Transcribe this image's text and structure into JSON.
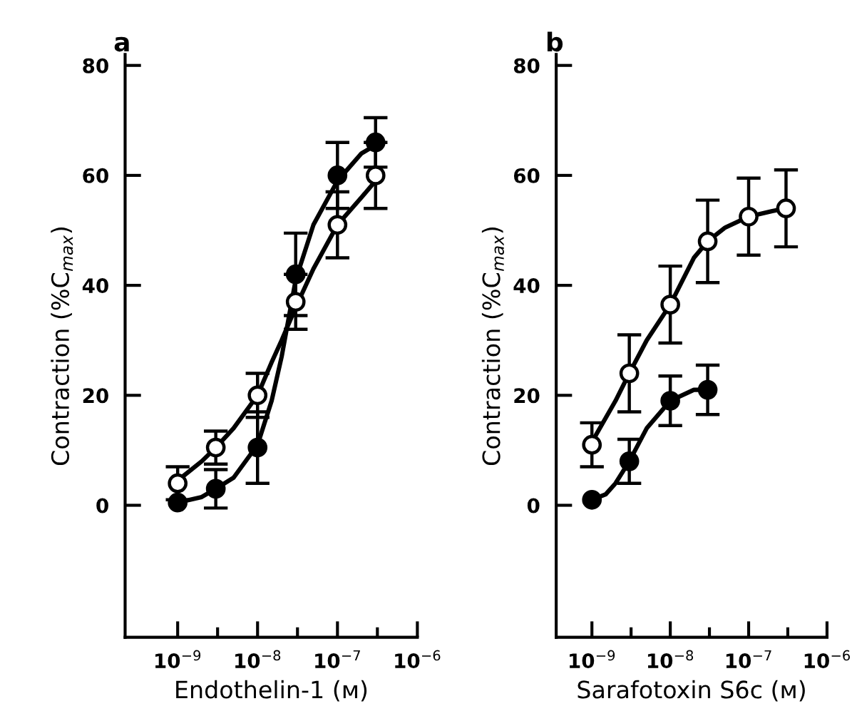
{
  "chart_data": [
    {
      "type": "scatter",
      "title": "a",
      "xlabel": "Endothelin-1 (ᴍ)",
      "ylabel": "Contraction (%C$_{max}$)",
      "log": "x",
      "xlim": [
        2.2e-10,
        1e-06
      ],
      "ylim": [
        -24,
        82
      ],
      "xticks": [
        {
          "value": 1e-09,
          "label": "10$^{−9}$"
        },
        {
          "value": 3.16e-09,
          "label": null
        },
        {
          "value": 1e-08,
          "label": "10$^{−8}$"
        },
        {
          "value": 3.16e-08,
          "label": null
        },
        {
          "value": 1e-07,
          "label": "10$^{−7}$"
        },
        {
          "value": 3.16e-07,
          "label": null
        },
        {
          "value": 1e-06,
          "label": "10$^{−6}$"
        }
      ],
      "yticks": [
        0,
        20,
        40,
        60,
        80
      ],
      "grid": false,
      "marker": "circle",
      "series": [
        {
          "type": "line",
          "color": "#000000",
          "marker": "none",
          "x": [
            1e-09,
            2e-09,
            3e-09,
            5e-09,
            1e-08,
            1.5e-08,
            2e-08,
            3e-08,
            5e-08,
            1e-07,
            2e-07,
            3e-07
          ],
          "values": [
            4.5,
            8,
            10.5,
            14,
            20,
            26,
            30,
            36,
            43,
            51,
            56,
            59
          ]
        },
        {
          "type": "line",
          "color": "#000000",
          "marker": "none",
          "x": [
            1e-09,
            2e-09,
            3e-09,
            5e-09,
            1e-08,
            1.5e-08,
            2e-08,
            3e-08,
            5e-08,
            1e-07,
            2e-07,
            3e-07
          ],
          "values": [
            0.5,
            1.5,
            3,
            5,
            11,
            19,
            27,
            41,
            51,
            59,
            64,
            65.5
          ]
        },
        {
          "color": "#ffffff",
          "x": [
            1e-09,
            3e-09,
            1e-08,
            3e-08,
            1e-07,
            3e-07
          ],
          "values": [
            4,
            10.5,
            20,
            37,
            51,
            60
          ],
          "errors": [
            3,
            3,
            4,
            5,
            6,
            6
          ]
        },
        {
          "color": "#000000",
          "x": [
            1e-09,
            3e-09,
            1e-08,
            3e-08,
            1e-07,
            3e-07
          ],
          "values": [
            0.5,
            3,
            10.5,
            42,
            60,
            66
          ],
          "errors": [
            null,
            3.5,
            6.5,
            7.5,
            6,
            4.5
          ]
        }
      ]
    },
    {
      "type": "scatter",
      "title": "b",
      "xlabel": "Sarafotoxin S6c (ᴍ)",
      "ylabel": "Contraction (%C$_{max}$)",
      "log": "x",
      "xlim": [
        3.5e-10,
        1e-06
      ],
      "ylim": [
        -24,
        82
      ],
      "xticks": [
        {
          "value": 1e-09,
          "label": "10$^{−9}$"
        },
        {
          "value": 3.16e-09,
          "label": null
        },
        {
          "value": 1e-08,
          "label": "10$^{−8}$"
        },
        {
          "value": 3.16e-08,
          "label": null
        },
        {
          "value": 1e-07,
          "label": "10$^{−7}$"
        },
        {
          "value": 3.16e-07,
          "label": null
        },
        {
          "value": 1e-06,
          "label": "10$^{−6}$"
        }
      ],
      "yticks": [
        0,
        20,
        40,
        60,
        80
      ],
      "grid": false,
      "marker": "circle",
      "series": [
        {
          "type": "line",
          "color": "#000000",
          "marker": "none",
          "x": [
            1e-09,
            2e-09,
            3e-09,
            5e-09,
            1e-08,
            2e-08,
            3e-08,
            5e-08,
            1e-07,
            2e-07,
            3e-07
          ],
          "values": [
            11.5,
            19,
            24,
            30,
            36.5,
            45,
            48,
            50.5,
            52.5,
            53.5,
            54
          ]
        },
        {
          "type": "line",
          "color": "#000000",
          "marker": "none",
          "x": [
            1e-09,
            1.5e-09,
            2e-09,
            3e-09,
            5e-09,
            1e-08,
            2e-08,
            3e-08
          ],
          "values": [
            1,
            2,
            4,
            8,
            14,
            19,
            21,
            21
          ]
        },
        {
          "color": "#ffffff",
          "x": [
            1e-09,
            3e-09,
            1e-08,
            3e-08,
            1e-07,
            3e-07
          ],
          "values": [
            11,
            24,
            36.5,
            48,
            52.5,
            54
          ],
          "errors": [
            4,
            7,
            7,
            7.5,
            7,
            7
          ]
        },
        {
          "color": "#000000",
          "x": [
            1e-09,
            3e-09,
            1e-08,
            3e-08
          ],
          "values": [
            1,
            8,
            19,
            21
          ],
          "errors": [
            null,
            4,
            4.5,
            4.5
          ]
        }
      ]
    }
  ]
}
